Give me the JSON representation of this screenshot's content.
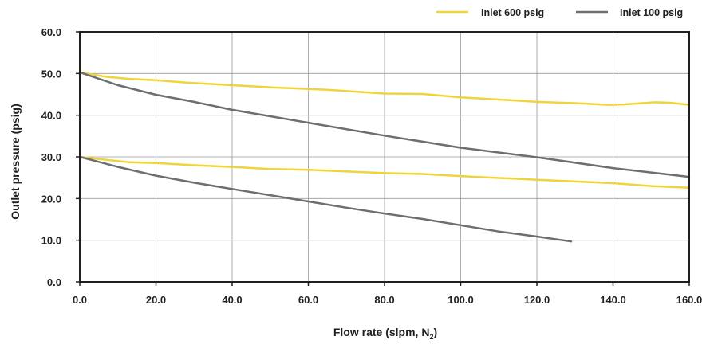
{
  "chart_data": {
    "type": "line",
    "title": "",
    "xlabel": "Flow rate (slpm, N",
    "xlabel_subscript": "2",
    "xlabel_suffix": ")",
    "ylabel": "Outlet pressure (psig)",
    "xlim": [
      0,
      160
    ],
    "ylim": [
      0,
      60
    ],
    "x_ticks": [
      0,
      20,
      40,
      60,
      80,
      100,
      120,
      140,
      160
    ],
    "x_tick_labels": [
      "0.0",
      "20.0",
      "40.0",
      "60.0",
      "80.0",
      "100.0",
      "120.0",
      "140.0",
      "160.0"
    ],
    "y_ticks": [
      0,
      10,
      20,
      30,
      40,
      50,
      60
    ],
    "y_tick_labels": [
      "0.0",
      "10.0",
      "20.0",
      "30.0",
      "40.0",
      "50.0",
      "60.0"
    ],
    "grid": true,
    "legend_position": "top-right",
    "legend": [
      {
        "label": "Inlet 600 psig",
        "color": "#f0d43a"
      },
      {
        "label": "Inlet 100 psig",
        "color": "#6d6e71"
      }
    ],
    "series": [
      {
        "name": "Inlet 600 psig",
        "color": "#f0d43a",
        "x": [
          0,
          7,
          13,
          20,
          28,
          40,
          52,
          65,
          80,
          90,
          100,
          113,
          120,
          130,
          139,
          143,
          151,
          155,
          160
        ],
        "y": [
          50.3,
          49.2,
          48.7,
          48.4,
          47.8,
          47.2,
          46.6,
          46.1,
          45.2,
          45.1,
          44.3,
          43.6,
          43.2,
          42.9,
          42.5,
          42.6,
          43.1,
          43.0,
          42.5
        ]
      },
      {
        "name": "Inlet 100 psig",
        "color": "#6d6e71",
        "x": [
          0,
          10,
          20,
          30,
          40,
          60,
          80,
          100,
          120,
          140,
          160
        ],
        "y": [
          50.3,
          47.2,
          44.9,
          43.2,
          41.3,
          38.2,
          35.1,
          32.2,
          29.9,
          27.3,
          25.2
        ]
      },
      {
        "name": "Inlet 600 psig",
        "color": "#f0d43a",
        "x": [
          0,
          7,
          13,
          20,
          30,
          40,
          50,
          60,
          80,
          90,
          100,
          120,
          140,
          150,
          160
        ],
        "y": [
          30.0,
          29.3,
          28.7,
          28.5,
          28.0,
          27.6,
          27.1,
          26.9,
          26.1,
          25.9,
          25.4,
          24.5,
          23.7,
          23.0,
          22.6
        ]
      },
      {
        "name": "Inlet 100 psig",
        "color": "#6d6e71",
        "x": [
          0,
          10,
          20,
          30,
          40,
          50,
          60,
          70,
          80,
          90,
          100,
          110,
          120,
          129
        ],
        "y": [
          30.0,
          27.6,
          25.5,
          23.8,
          22.3,
          20.8,
          19.3,
          17.8,
          16.4,
          15.1,
          13.6,
          12.1,
          10.9,
          9.7
        ]
      }
    ]
  }
}
